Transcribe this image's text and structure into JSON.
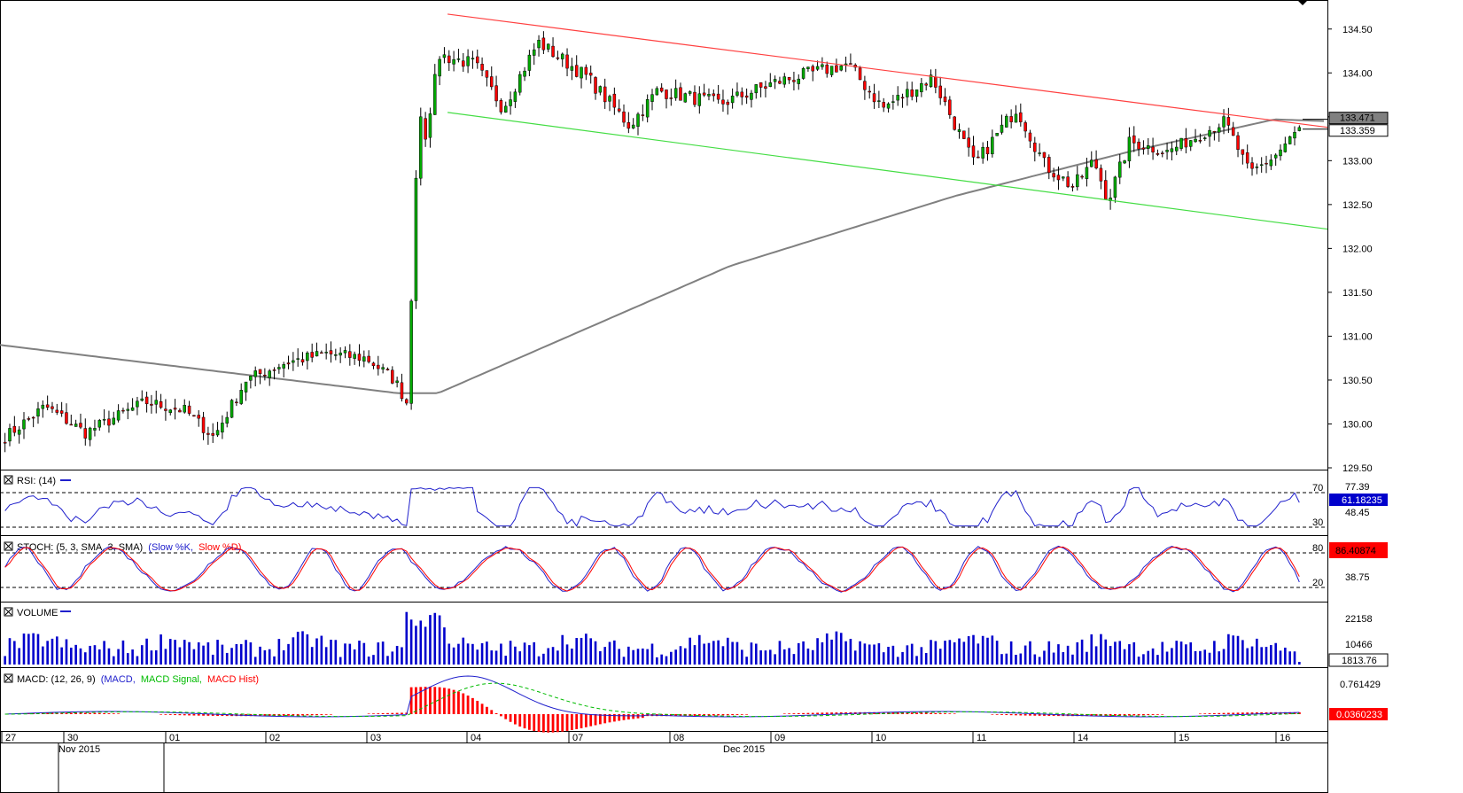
{
  "chart_data": {
    "type": "candlestick",
    "main": {
      "y_ticks": [
        "134.50",
        "134.00",
        "133.50",
        "133.00",
        "132.50",
        "132.00",
        "131.50",
        "131.00",
        "130.50",
        "130.00",
        "129.50"
      ],
      "ylim": [
        129.5,
        134.75
      ],
      "price_labels": [
        {
          "value": 133.471,
          "text": "133.471"
        },
        {
          "value": 133.359,
          "text": "133.359"
        }
      ],
      "trend_resistance": {
        "color": "#ff4040",
        "from": [
          0.33,
          134.67
        ],
        "to": [
          1.0,
          133.38
        ]
      },
      "trend_support": {
        "color": "#44dd44",
        "from": [
          0.33,
          133.55
        ],
        "to": [
          1.0,
          132.22
        ]
      },
      "moving_average_color": "#808080",
      "up_color": "#00aa00",
      "down_color": "#ff0000"
    },
    "rsi": {
      "title": "RSI: (14)",
      "levels": [
        "70",
        "30"
      ],
      "y_ticks": [
        "77.39",
        "48.45"
      ],
      "last_value": "61.18235",
      "color": "#2020cc"
    },
    "stoch": {
      "title": "STOCH: (5, 3, SMA, 3, SMA)",
      "legend": [
        {
          "text": "(Slow %K,",
          "color": "#2020cc"
        },
        {
          "text": "Slow %D)",
          "color": "#ff0000"
        }
      ],
      "levels": [
        "80",
        "20"
      ],
      "y_ticks": [
        "38.75"
      ],
      "last_value": "86.40874"
    },
    "volume": {
      "title": "VOLUME",
      "y_ticks": [
        "22158",
        "10466"
      ],
      "last_value": "1813.76",
      "color": "#0000cc"
    },
    "macd": {
      "title": "MACD: (12, 26, 9)",
      "legend": [
        {
          "text": "(MACD,",
          "color": "#2020cc"
        },
        {
          "text": "MACD Signal,",
          "color": "#00bb00"
        },
        {
          "text": "MACD Hist)",
          "color": "#ff0000"
        }
      ],
      "y_ticks": [
        "0.761429"
      ],
      "last_value": "0.0360233"
    },
    "x_axis": {
      "day_labels": [
        "27",
        "30",
        "01",
        "02",
        "03",
        "04",
        "07",
        "08",
        "09",
        "10",
        "11",
        "14",
        "15",
        "16"
      ],
      "month_labels": [
        "Nov 2015",
        "Dec 2015"
      ]
    }
  }
}
